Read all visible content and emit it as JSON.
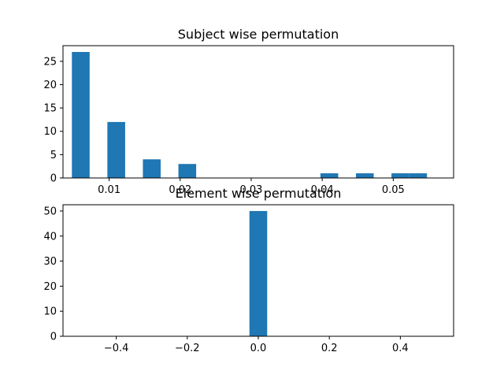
{
  "colors": {
    "bar": "#1f77b4",
    "axis": "#000000",
    "background": "#ffffff"
  },
  "chart_data": [
    {
      "type": "bar",
      "title": "Subject wise permutation",
      "xlabel": "",
      "ylabel": "",
      "xlim": [
        0.0035,
        0.0585
      ],
      "ylim": [
        0,
        28.35
      ],
      "bar_width": 0.0025,
      "x_ticks": [
        {
          "value": 0.01,
          "label": "0.01"
        },
        {
          "value": 0.02,
          "label": "0.02"
        },
        {
          "value": 0.03,
          "label": "0.03"
        },
        {
          "value": 0.04,
          "label": "0.04"
        },
        {
          "value": 0.05,
          "label": "0.05"
        }
      ],
      "y_ticks": [
        {
          "value": 0,
          "label": "0"
        },
        {
          "value": 5,
          "label": "5"
        },
        {
          "value": 10,
          "label": "10"
        },
        {
          "value": 15,
          "label": "15"
        },
        {
          "value": 20,
          "label": "20"
        },
        {
          "value": 25,
          "label": "25"
        }
      ],
      "bars": [
        {
          "x": 0.006,
          "value": 27
        },
        {
          "x": 0.011,
          "value": 12
        },
        {
          "x": 0.016,
          "value": 4
        },
        {
          "x": 0.021,
          "value": 3
        },
        {
          "x": 0.041,
          "value": 1
        },
        {
          "x": 0.046,
          "value": 1
        },
        {
          "x": 0.051,
          "value": 1
        },
        {
          "x": 0.0535,
          "value": 1
        }
      ]
    },
    {
      "type": "bar",
      "title": "Element wise permutation",
      "xlabel": "",
      "ylabel": "",
      "xlim": [
        -0.55,
        0.55
      ],
      "ylim": [
        0,
        52.5
      ],
      "bar_width": 0.05,
      "x_ticks": [
        {
          "value": -0.4,
          "label": "−0.4"
        },
        {
          "value": -0.2,
          "label": "−0.2"
        },
        {
          "value": 0.0,
          "label": "0.0"
        },
        {
          "value": 0.2,
          "label": "0.2"
        },
        {
          "value": 0.4,
          "label": "0.4"
        }
      ],
      "y_ticks": [
        {
          "value": 0,
          "label": "0"
        },
        {
          "value": 10,
          "label": "10"
        },
        {
          "value": 20,
          "label": "20"
        },
        {
          "value": 30,
          "label": "30"
        },
        {
          "value": 40,
          "label": "40"
        },
        {
          "value": 50,
          "label": "50"
        }
      ],
      "bars": [
        {
          "x": 0.0,
          "value": 50
        }
      ]
    }
  ]
}
